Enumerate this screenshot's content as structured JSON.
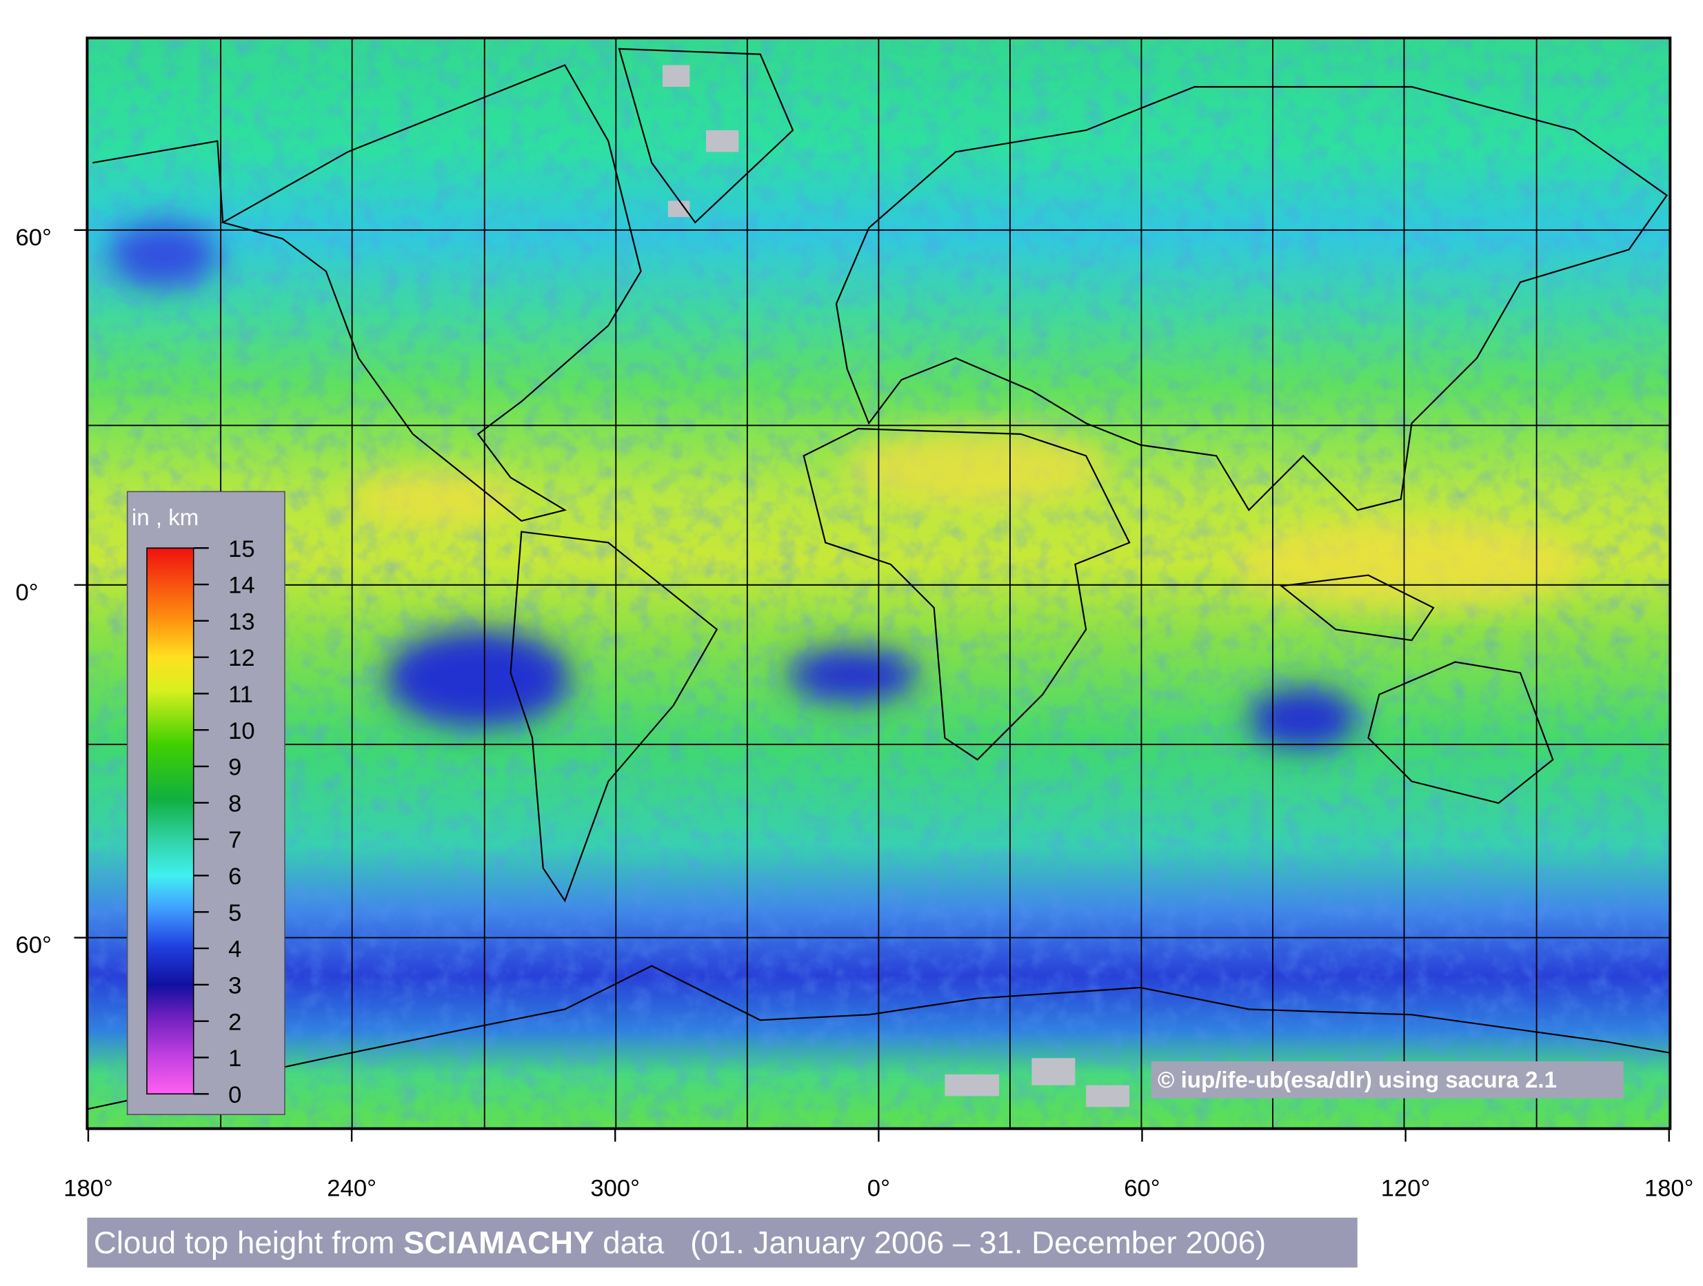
{
  "map": {
    "title": {
      "prefix": "Cloud top height from",
      "emphasis": "SCIAMACHY",
      "suffix": "data   (01. January 2006 – 31. December 2006)"
    },
    "credit": "© iup/ife-ub(esa/dlr) using sacura 2.1",
    "colorbar": {
      "label": "in , km",
      "ticks": [
        0,
        1,
        2,
        3,
        4,
        5,
        6,
        7,
        8,
        9,
        10,
        11,
        12,
        13,
        14,
        15
      ]
    },
    "longitude_labels": [
      "180°",
      "240°",
      "300°",
      "0°",
      "60°",
      "120°",
      "180°"
    ],
    "latitude_labels": [
      "60°",
      "0°",
      "60°"
    ]
  }
}
